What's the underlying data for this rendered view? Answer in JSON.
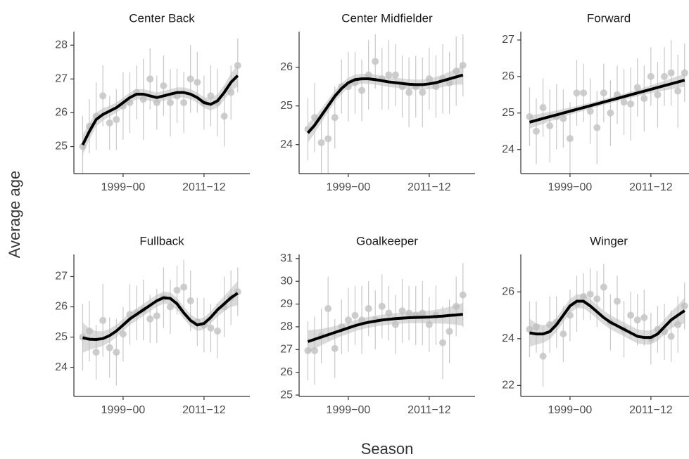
{
  "xlabel": "Season",
  "ylabel": "Average age",
  "chart_data": [
    {
      "type": "scatter",
      "title": "Center Back",
      "x": [
        1993,
        1994,
        1995,
        1996,
        1997,
        1998,
        1999,
        2000,
        2001,
        2002,
        2003,
        2004,
        2005,
        2006,
        2007,
        2008,
        2009,
        2010,
        2011,
        2012,
        2013,
        2014,
        2015,
        2016
      ],
      "values": [
        25.0,
        25.6,
        25.9,
        26.5,
        25.7,
        25.8,
        26.2,
        26.3,
        26.6,
        26.4,
        27.0,
        26.3,
        26.8,
        26.3,
        26.5,
        26.3,
        27.0,
        26.9,
        26.3,
        26.5,
        26.3,
        25.9,
        26.6,
        27.4
      ],
      "errors": [
        0.9,
        0.8,
        1.0,
        0.9,
        0.8,
        0.9,
        1.0,
        0.9,
        0.8,
        1.2,
        0.9,
        0.8,
        0.9,
        1.0,
        0.8,
        0.9,
        1.0,
        0.9,
        0.8,
        0.9,
        1.0,
        0.9,
        0.8,
        0.8
      ],
      "fit": [
        25.05,
        25.45,
        25.8,
        25.95,
        26.05,
        26.15,
        26.3,
        26.45,
        26.55,
        26.55,
        26.5,
        26.45,
        26.5,
        26.55,
        26.6,
        26.6,
        26.55,
        26.45,
        26.3,
        26.25,
        26.35,
        26.6,
        26.9,
        27.1
      ],
      "fit_se": [
        0.3,
        0.25,
        0.2,
        0.18,
        0.16,
        0.15,
        0.15,
        0.15,
        0.15,
        0.15,
        0.15,
        0.15,
        0.15,
        0.15,
        0.15,
        0.15,
        0.15,
        0.15,
        0.16,
        0.18,
        0.2,
        0.22,
        0.26,
        0.32
      ],
      "xlim": [
        1991.7,
        2017.8
      ],
      "ylim": [
        24.2,
        28.4
      ],
      "xticks": [
        {
          "value": 1999,
          "label": "1999−00"
        },
        {
          "value": 2011,
          "label": "2011−12"
        }
      ],
      "yticks": [
        25,
        26,
        27,
        28
      ],
      "point_color": "#c8c8c8",
      "fit_color": "#000000",
      "band_color": "#bdbdbd"
    },
    {
      "type": "scatter",
      "title": "Center Midfielder",
      "x": [
        1993,
        1994,
        1995,
        1996,
        1997,
        1998,
        1999,
        2000,
        2001,
        2002,
        2003,
        2004,
        2005,
        2006,
        2007,
        2008,
        2009,
        2010,
        2011,
        2012,
        2013,
        2014,
        2015,
        2016
      ],
      "values": [
        24.4,
        24.7,
        24.05,
        24.15,
        24.7,
        25.5,
        25.5,
        25.6,
        25.4,
        25.8,
        26.15,
        25.7,
        25.8,
        25.8,
        25.5,
        25.35,
        25.5,
        25.35,
        25.7,
        25.5,
        25.7,
        25.6,
        25.9,
        26.05
      ],
      "errors": [
        0.8,
        0.9,
        0.8,
        0.9,
        0.8,
        0.7,
        0.9,
        0.8,
        0.8,
        0.9,
        0.7,
        0.8,
        0.9,
        0.8,
        0.8,
        0.9,
        0.8,
        0.9,
        0.8,
        0.8,
        0.9,
        0.8,
        0.9,
        0.8
      ],
      "fit": [
        24.3,
        24.5,
        24.75,
        25.0,
        25.25,
        25.45,
        25.6,
        25.68,
        25.7,
        25.7,
        25.68,
        25.65,
        25.62,
        25.6,
        25.58,
        25.56,
        25.55,
        25.55,
        25.57,
        25.6,
        25.65,
        25.7,
        25.75,
        25.8
      ],
      "fit_se": [
        0.25,
        0.2,
        0.18,
        0.16,
        0.15,
        0.14,
        0.13,
        0.13,
        0.13,
        0.13,
        0.13,
        0.13,
        0.13,
        0.13,
        0.13,
        0.13,
        0.13,
        0.13,
        0.14,
        0.15,
        0.16,
        0.18,
        0.2,
        0.25
      ],
      "xlim": [
        1991.7,
        2017.8
      ],
      "ylim": [
        23.25,
        26.92
      ],
      "xticks": [
        {
          "value": 1999,
          "label": "1999−00"
        },
        {
          "value": 2011,
          "label": "2011−12"
        }
      ],
      "yticks": [
        24,
        25,
        26
      ],
      "point_color": "#c8c8c8",
      "fit_color": "#000000",
      "band_color": "#bdbdbd"
    },
    {
      "type": "scatter",
      "title": "Forward",
      "x": [
        1993,
        1994,
        1995,
        1996,
        1997,
        1998,
        1999,
        2000,
        2001,
        2002,
        2003,
        2004,
        2005,
        2006,
        2007,
        2008,
        2009,
        2010,
        2011,
        2012,
        2013,
        2014,
        2015,
        2016
      ],
      "values": [
        24.9,
        24.5,
        25.15,
        24.65,
        24.9,
        24.85,
        24.3,
        25.55,
        25.55,
        25.05,
        24.6,
        25.55,
        25.0,
        25.5,
        25.3,
        25.25,
        25.7,
        25.4,
        26.0,
        25.5,
        26.0,
        26.1,
        25.6,
        26.1
      ],
      "errors": [
        0.8,
        0.9,
        0.8,
        1.0,
        0.9,
        0.8,
        1.0,
        0.9,
        0.8,
        0.9,
        1.0,
        0.8,
        0.9,
        0.8,
        0.9,
        1.0,
        0.8,
        0.9,
        0.8,
        0.9,
        0.8,
        0.9,
        1.0,
        0.8
      ],
      "fit": [
        24.75,
        24.8,
        24.85,
        24.9,
        24.95,
        25.0,
        25.05,
        25.1,
        25.15,
        25.2,
        25.25,
        25.3,
        25.35,
        25.4,
        25.45,
        25.5,
        25.55,
        25.6,
        25.65,
        25.7,
        25.75,
        25.8,
        25.85,
        25.9
      ],
      "fit_se": [
        0.18,
        0.16,
        0.15,
        0.13,
        0.12,
        0.11,
        0.1,
        0.09,
        0.09,
        0.08,
        0.08,
        0.08,
        0.08,
        0.08,
        0.08,
        0.09,
        0.09,
        0.1,
        0.11,
        0.12,
        0.13,
        0.15,
        0.16,
        0.18
      ],
      "xlim": [
        1991.7,
        2017.8
      ],
      "ylim": [
        23.34,
        27.23
      ],
      "xticks": [
        {
          "value": 1999,
          "label": "1999−00"
        },
        {
          "value": 2011,
          "label": "2011−12"
        }
      ],
      "yticks": [
        24,
        25,
        26,
        27
      ],
      "point_color": "#c8c8c8",
      "fit_color": "#000000",
      "band_color": "#bdbdbd"
    },
    {
      "type": "scatter",
      "title": "Fullback",
      "x": [
        1993,
        1994,
        1995,
        1996,
        1997,
        1998,
        1999,
        2000,
        2001,
        2002,
        2003,
        2004,
        2005,
        2006,
        2007,
        2008,
        2009,
        2010,
        2011,
        2012,
        2013,
        2014,
        2015,
        2016
      ],
      "values": [
        25.0,
        25.2,
        24.5,
        25.55,
        24.65,
        24.5,
        25.1,
        25.75,
        25.8,
        25.9,
        25.6,
        25.7,
        26.3,
        26.0,
        26.55,
        26.65,
        26.2,
        25.5,
        25.4,
        25.3,
        25.2,
        26.0,
        26.3,
        26.5
      ],
      "errors": [
        1.1,
        1.0,
        0.9,
        1.2,
        1.0,
        1.1,
        0.9,
        1.0,
        0.9,
        1.0,
        0.8,
        0.9,
        1.0,
        0.9,
        0.8,
        0.9,
        1.0,
        0.8,
        0.9,
        0.8,
        0.9,
        1.0,
        0.9,
        0.8
      ],
      "fit": [
        24.98,
        24.93,
        24.92,
        24.95,
        25.05,
        25.2,
        25.4,
        25.6,
        25.75,
        25.9,
        26.05,
        26.2,
        26.3,
        26.28,
        26.1,
        25.8,
        25.55,
        25.4,
        25.45,
        25.65,
        25.9,
        26.1,
        26.3,
        26.45
      ],
      "fit_se": [
        0.5,
        0.35,
        0.28,
        0.24,
        0.22,
        0.2,
        0.2,
        0.2,
        0.2,
        0.2,
        0.2,
        0.2,
        0.2,
        0.2,
        0.2,
        0.2,
        0.2,
        0.2,
        0.2,
        0.2,
        0.22,
        0.25,
        0.3,
        0.4
      ],
      "xlim": [
        1991.7,
        2017.8
      ],
      "ylim": [
        23.04,
        27.73
      ],
      "xticks": [
        {
          "value": 1999,
          "label": "1999−00"
        },
        {
          "value": 2011,
          "label": "2011−12"
        }
      ],
      "yticks": [
        24,
        25,
        26,
        27
      ],
      "point_color": "#c8c8c8",
      "fit_color": "#000000",
      "band_color": "#bdbdbd"
    },
    {
      "type": "scatter",
      "title": "Goalkeeper",
      "x": [
        1993,
        1994,
        1995,
        1996,
        1997,
        1998,
        1999,
        2000,
        2001,
        2002,
        2003,
        2004,
        2005,
        2006,
        2007,
        2008,
        2009,
        2010,
        2011,
        2012,
        2013,
        2014,
        2015,
        2016
      ],
      "values": [
        26.95,
        26.95,
        27.6,
        28.8,
        27.05,
        28.0,
        28.3,
        28.5,
        28.3,
        28.8,
        28.3,
        28.9,
        28.6,
        28.1,
        28.7,
        28.6,
        28.5,
        28.6,
        28.1,
        28.5,
        27.3,
        27.8,
        28.9,
        29.4
      ],
      "errors": [
        1.3,
        1.5,
        1.2,
        1.4,
        1.3,
        1.2,
        1.4,
        1.3,
        1.5,
        1.2,
        1.3,
        1.4,
        1.2,
        1.3,
        1.4,
        1.2,
        1.3,
        1.4,
        1.2,
        1.3,
        1.6,
        1.4,
        1.3,
        1.4
      ],
      "fit": [
        27.35,
        27.45,
        27.55,
        27.65,
        27.75,
        27.85,
        27.95,
        28.05,
        28.13,
        28.2,
        28.25,
        28.3,
        28.33,
        28.36,
        28.38,
        28.4,
        28.41,
        28.42,
        28.43,
        28.45,
        28.47,
        28.5,
        28.52,
        28.55
      ],
      "fit_se": [
        0.5,
        0.42,
        0.36,
        0.32,
        0.28,
        0.26,
        0.25,
        0.24,
        0.24,
        0.24,
        0.24,
        0.24,
        0.24,
        0.24,
        0.24,
        0.24,
        0.25,
        0.26,
        0.28,
        0.3,
        0.33,
        0.38,
        0.43,
        0.5
      ],
      "xlim": [
        1991.7,
        2017.8
      ],
      "ylim": [
        24.94,
        31.18
      ],
      "xticks": [
        {
          "value": 1999,
          "label": "1999−00"
        },
        {
          "value": 2011,
          "label": "2011−12"
        }
      ],
      "yticks": [
        25,
        26,
        27,
        28,
        29,
        30,
        31
      ],
      "point_color": "#c8c8c8",
      "fit_color": "#000000",
      "band_color": "#bdbdbd"
    },
    {
      "type": "scatter",
      "title": "Winger",
      "x": [
        1993,
        1994,
        1995,
        1996,
        1997,
        1998,
        1999,
        2000,
        2001,
        2002,
        2003,
        2004,
        2005,
        2006,
        2007,
        2008,
        2009,
        2010,
        2011,
        2012,
        2013,
        2014,
        2015,
        2016
      ],
      "values": [
        24.4,
        24.5,
        23.25,
        24.6,
        24.7,
        24.2,
        25.0,
        25.5,
        25.8,
        25.9,
        25.7,
        26.2,
        24.7,
        25.6,
        24.4,
        25.0,
        24.8,
        24.9,
        24.0,
        24.4,
        24.3,
        24.1,
        24.6,
        25.4
      ],
      "errors": [
        1.2,
        1.1,
        1.3,
        1.2,
        1.1,
        1.2,
        1.1,
        1.2,
        1.0,
        1.1,
        1.2,
        1.0,
        1.2,
        1.1,
        1.2,
        1.0,
        1.1,
        1.2,
        1.1,
        1.0,
        1.2,
        1.1,
        1.2,
        1.0
      ],
      "fit": [
        24.25,
        24.2,
        24.2,
        24.3,
        24.6,
        25.0,
        25.4,
        25.6,
        25.6,
        25.4,
        25.15,
        24.9,
        24.7,
        24.55,
        24.4,
        24.25,
        24.1,
        24.05,
        24.05,
        24.2,
        24.5,
        24.8,
        25.0,
        25.2
      ],
      "fit_se": [
        0.6,
        0.45,
        0.38,
        0.33,
        0.3,
        0.3,
        0.3,
        0.3,
        0.3,
        0.3,
        0.3,
        0.3,
        0.3,
        0.3,
        0.3,
        0.3,
        0.3,
        0.3,
        0.3,
        0.3,
        0.32,
        0.36,
        0.42,
        0.55
      ],
      "xlim": [
        1991.7,
        2017.8
      ],
      "ylim": [
        21.53,
        27.6
      ],
      "xticks": [
        {
          "value": 1999,
          "label": "1999−00"
        },
        {
          "value": 2011,
          "label": "2011−12"
        }
      ],
      "yticks": [
        22,
        24,
        26
      ],
      "point_color": "#c8c8c8",
      "fit_color": "#000000",
      "band_color": "#bdbdbd"
    }
  ]
}
